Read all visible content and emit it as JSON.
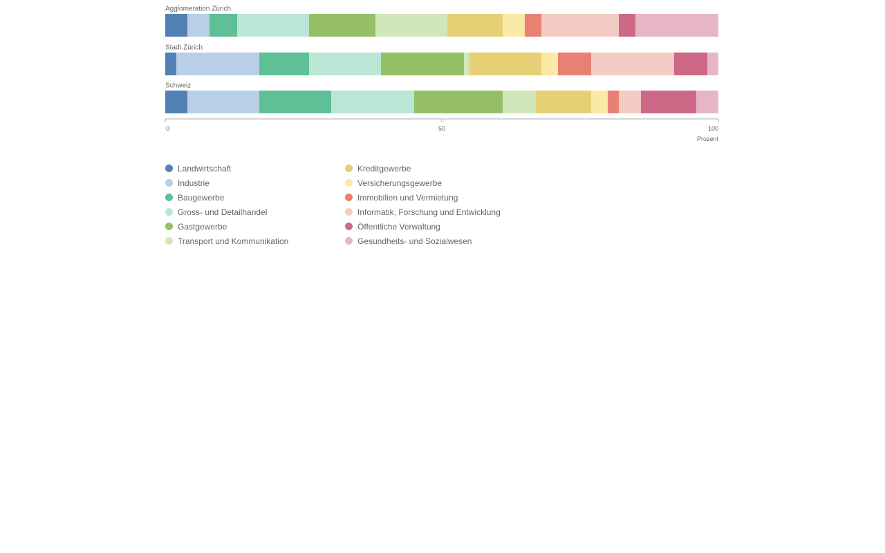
{
  "chart_data": {
    "type": "bar",
    "orientation": "horizontal",
    "stacked": true,
    "normalized": true,
    "categories": [
      "Agglomeration Zürich",
      "Stadt Zürich",
      "Schweiz"
    ],
    "xlim": [
      0,
      100
    ],
    "xticks": [
      0,
      50,
      100
    ],
    "xtick_labels": [
      "0",
      "50",
      "100"
    ],
    "xlabel": "Prozent",
    "grid": false,
    "legend_position": "bottom-left",
    "series": [
      {
        "name": "Landwirtschaft",
        "color": "#5282b5",
        "values": [
          4,
          2,
          4
        ]
      },
      {
        "name": "Industrie",
        "color": "#b8cfe7",
        "values": [
          4,
          15,
          13
        ]
      },
      {
        "name": "Baugewerbe",
        "color": "#5fbf96",
        "values": [
          5,
          9,
          13
        ]
      },
      {
        "name": "Gross- und Detailhandel",
        "color": "#b9e6d5",
        "values": [
          13,
          13,
          15
        ]
      },
      {
        "name": "Gastgewerbe",
        "color": "#94bf67",
        "values": [
          12,
          15,
          16
        ]
      },
      {
        "name": "Transport und Kommunikation",
        "color": "#d2e7b9",
        "values": [
          13,
          1,
          6
        ]
      },
      {
        "name": "Kreditgewerbe",
        "color": "#e6cf74",
        "values": [
          10,
          13,
          10
        ]
      },
      {
        "name": "Versicherungsgewerbe",
        "color": "#fbe9a6",
        "values": [
          4,
          3,
          3
        ]
      },
      {
        "name": "Immobilien und Vermietung",
        "color": "#e98074",
        "values": [
          3,
          6,
          2
        ]
      },
      {
        "name": "Informatik, Forschung und Entwicklung",
        "color": "#f2cbc2",
        "values": [
          14,
          15,
          4
        ]
      },
      {
        "name": "Öffentliche Verwaltung",
        "color": "#cd6987",
        "values": [
          3,
          6,
          10
        ]
      },
      {
        "name": "Gesundheits- und Sozialwesen",
        "color": "#e7b6c6",
        "values": [
          15,
          2,
          4
        ]
      }
    ]
  }
}
